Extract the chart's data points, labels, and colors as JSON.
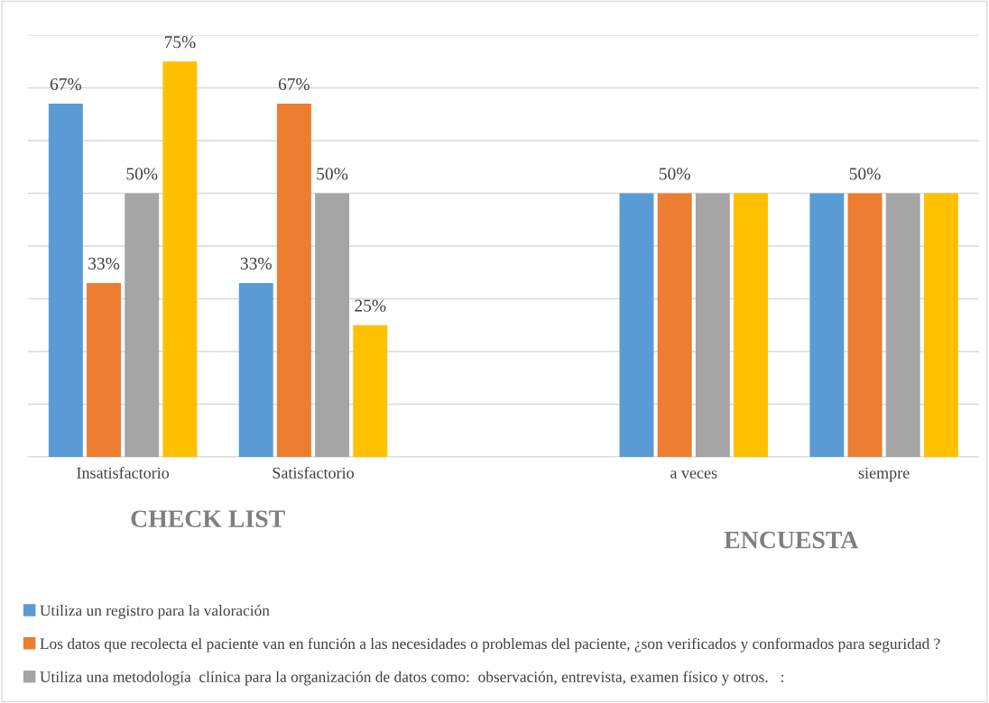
{
  "chart_data": {
    "type": "bar",
    "categories": [
      "Insatisfactorio",
      "Satisfactorio",
      null,
      "a veces",
      "siempre"
    ],
    "series": [
      {
        "name": "Utiliza un registro para la valoración",
        "color": "#5b9bd5",
        "values": [
          67,
          33,
          null,
          50,
          50
        ],
        "value_labels": [
          "67%",
          "33%",
          null,
          null,
          null
        ]
      },
      {
        "name": "Los datos que recolecta el paciente van en función a las necesidades o problemas del paciente, ¿son verificados y conformados para seguridad ?",
        "color": "#ed7d31",
        "values": [
          33,
          67,
          null,
          50,
          50
        ],
        "value_labels": [
          "33%",
          "67%",
          null,
          "50%",
          "50%"
        ]
      },
      {
        "name": "Utiliza una metodología  clínica para la organización de datos como:  observación, entrevista, examen físico y otros.   :",
        "color": "#a5a5a5",
        "values": [
          50,
          50,
          null,
          50,
          50
        ],
        "value_labels": [
          "50%",
          "50%",
          null,
          null,
          null
        ]
      },
      {
        "color": "#ffc000",
        "values": [
          75,
          25,
          null,
          50,
          50
        ],
        "value_labels": [
          "75%",
          "25%",
          null,
          null,
          null
        ]
      }
    ],
    "ylim": [
      0,
      80
    ],
    "yticks": [
      {
        "value": 0,
        "label": null
      },
      {
        "value": 10,
        "label": null
      },
      {
        "value": 20,
        "label": null
      },
      {
        "value": 30,
        "label": null
      },
      {
        "value": 40,
        "label": null
      },
      {
        "value": 50,
        "label": null
      },
      {
        "value": 60,
        "label": null
      },
      {
        "value": 70,
        "label": null
      },
      {
        "value": 80,
        "label": null
      }
    ],
    "tick_labels": "x",
    "grid": "y",
    "legend": "bottom",
    "annotations": [
      "CHECK LIST",
      "ENCUESTA"
    ]
  }
}
